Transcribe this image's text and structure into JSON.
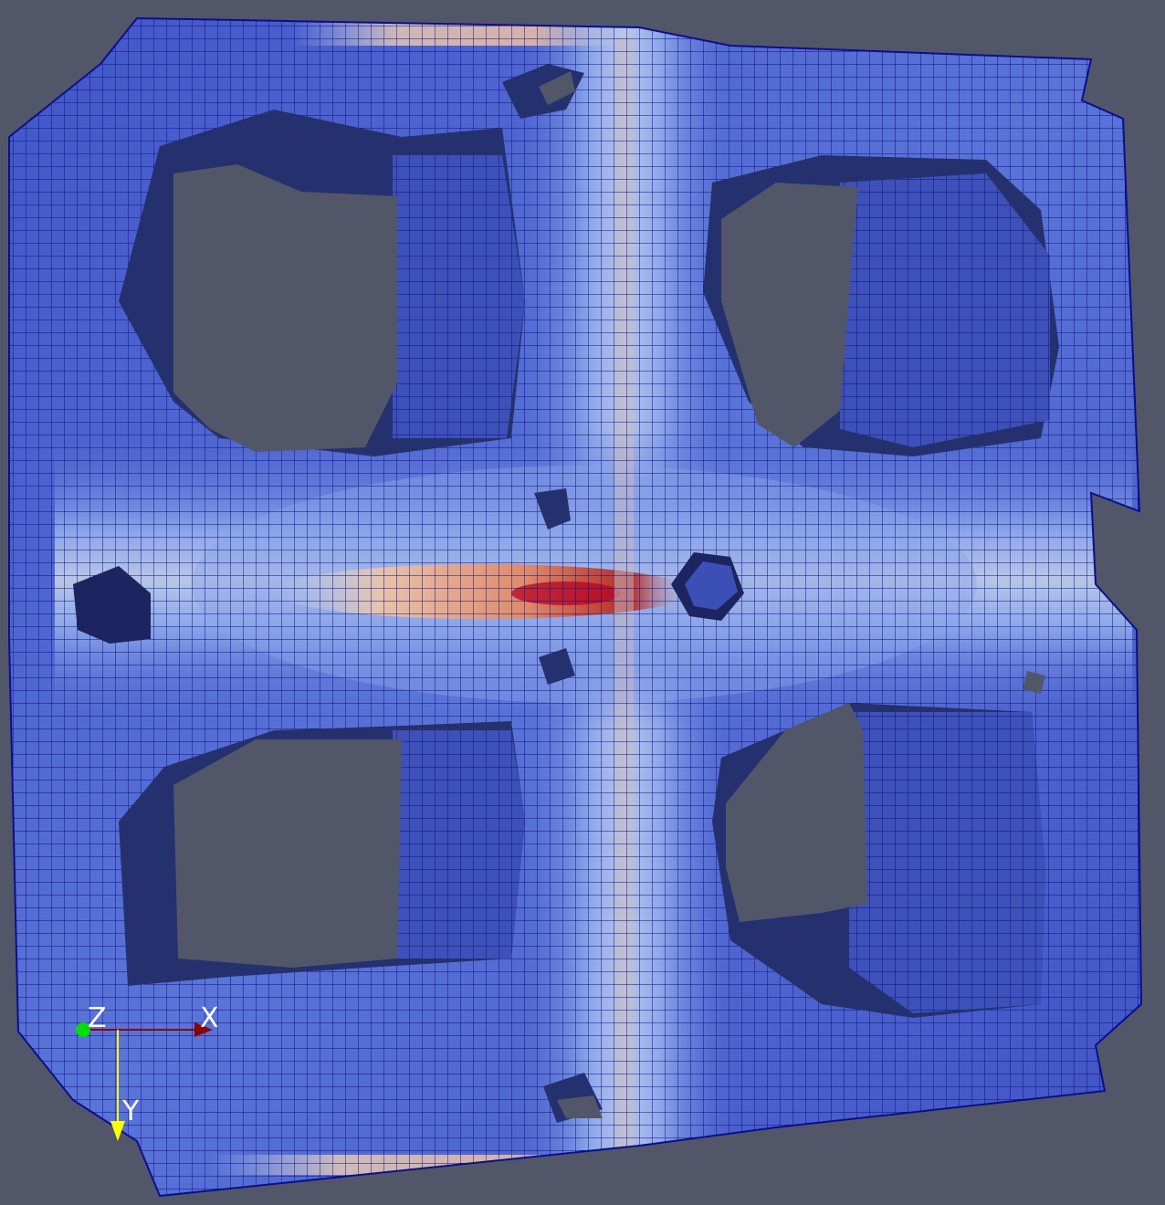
{
  "viewport": {
    "background": "#525669",
    "mesh_color": "#0b0f8a",
    "scalar_colormap": [
      "#3a4cc0",
      "#7b9ff9",
      "#c0d4f5",
      "#f2cbb7",
      "#ee8468",
      "#b40426"
    ]
  },
  "orientation_axes": {
    "origin_label": "Z",
    "x_label": "X",
    "y_label": "Y",
    "origin_color": "#00dd00",
    "x_color": "#8b0000",
    "y_color": "#ffff00"
  }
}
